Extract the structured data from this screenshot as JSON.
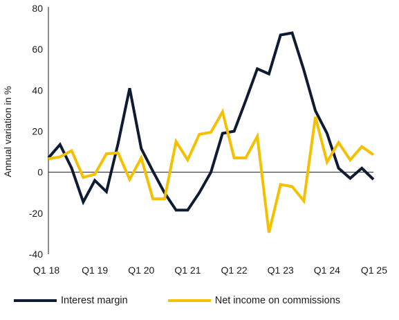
{
  "chart_data": {
    "type": "line",
    "title": "",
    "xlabel": "",
    "ylabel": "Annual variation in %",
    "ylim": [
      -40,
      80
    ],
    "yticks": [
      -40,
      -20,
      0,
      20,
      40,
      60,
      80
    ],
    "x": [
      "Q1 18",
      "Q2 18",
      "Q3 18",
      "Q4 18",
      "Q1 19",
      "Q2 19",
      "Q3 19",
      "Q4 19",
      "Q1 20",
      "Q2 20",
      "Q3 20",
      "Q4 20",
      "Q1 21",
      "Q2 21",
      "Q3 21",
      "Q4 21",
      "Q1 22",
      "Q2 22",
      "Q3 22",
      "Q4 22",
      "Q1 23",
      "Q2 23",
      "Q3 23",
      "Q4 23",
      "Q1 24",
      "Q2 24",
      "Q3 24",
      "Q4 24",
      "Q1 25"
    ],
    "x_tick_labels": [
      "Q1 18",
      "Q1 19",
      "Q1 20",
      "Q1 21",
      "Q1 22",
      "Q1 23",
      "Q1 24",
      "Q1 25"
    ],
    "grid": false,
    "legend_position": "bottom",
    "series": [
      {
        "name": "Interest margin",
        "color": "#0f1b33",
        "values": [
          7,
          13.5,
          2,
          -14.5,
          -4,
          -9.5,
          14,
          41,
          11.5,
          0.5,
          -10,
          -18.5,
          -18.5,
          -10,
          0,
          19,
          20,
          35,
          50.5,
          48,
          67,
          68,
          50,
          30,
          19,
          2,
          -3,
          2,
          -3.5
        ]
      },
      {
        "name": "Net income on commissions",
        "color": "#f5c000",
        "values": [
          6.5,
          7.5,
          10.5,
          -2.5,
          -1,
          9,
          9.5,
          -3.5,
          7,
          -13,
          -13,
          15,
          6,
          18.5,
          19.5,
          29.5,
          7,
          7,
          17.5,
          -29.5,
          -6,
          -7,
          -14,
          27,
          5,
          14.5,
          6,
          12.5,
          8.5
        ]
      }
    ]
  }
}
